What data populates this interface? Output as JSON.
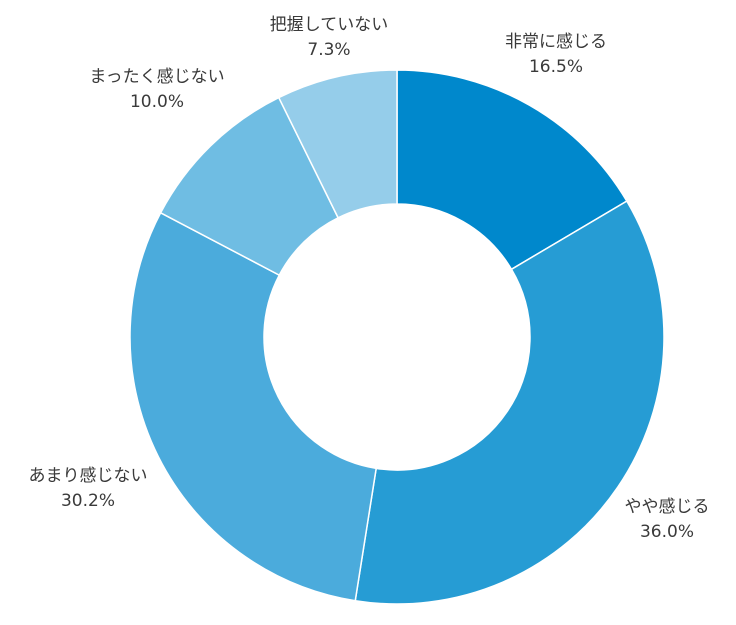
{
  "chart_data": {
    "type": "pie",
    "donut": true,
    "title": "",
    "legend": "none",
    "slices": [
      {
        "label": "非常に感じる",
        "value": 16.5,
        "display": "16.5%",
        "color": "#0088cc"
      },
      {
        "label": "やや感じる",
        "value": 36.0,
        "display": "36.0%",
        "color": "#269cd4"
      },
      {
        "label": "あまり感じない",
        "value": 30.2,
        "display": "30.2%",
        "color": "#4babdc"
      },
      {
        "label": "まったく感じない",
        "value": 10.0,
        "display": "10.0%",
        "color": "#6fbde3"
      },
      {
        "label": "把握していない",
        "value": 7.3,
        "display": "7.3%",
        "color": "#95cdea"
      }
    ]
  }
}
